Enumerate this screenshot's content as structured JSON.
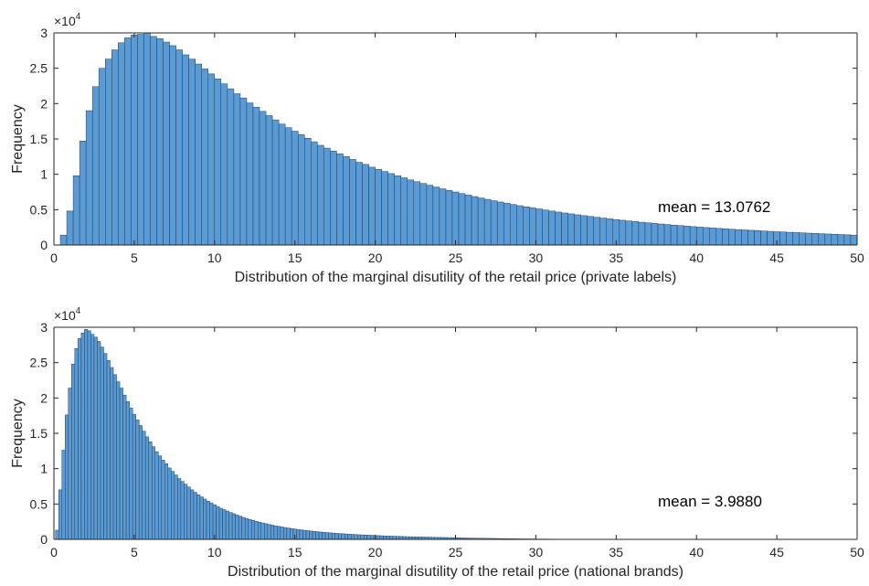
{
  "colors": {
    "bar_fill": "#5b9bd5",
    "bar_edge": "#1f3f5a",
    "axis": "#262626",
    "background": "#ffffff"
  },
  "chart_data": [
    {
      "type": "bar",
      "subtype": "histogram",
      "title": "",
      "xlabel": "Distribution of the marginal disutility of the retail price (private labels)",
      "ylabel": "Frequency",
      "xlim": [
        0,
        50
      ],
      "ylim": [
        0,
        30000
      ],
      "y_exponent_label": {
        "base": "×10",
        "exp": "4"
      },
      "xticks": [
        0,
        5,
        10,
        15,
        20,
        25,
        30,
        35,
        40,
        45,
        50
      ],
      "xtick_labels": [
        "0",
        "5",
        "10",
        "15",
        "20",
        "25",
        "30",
        "35",
        "40",
        "45",
        "50"
      ],
      "yticks": [
        0,
        5000,
        10000,
        15000,
        20000,
        25000,
        30000
      ],
      "ytick_labels": [
        "0",
        "0.5",
        "1",
        "1.5",
        "2",
        "2.5",
        "3"
      ],
      "bin_width": 0.4,
      "x_start": 0.4,
      "values": [
        1400,
        4800,
        9800,
        14700,
        19000,
        22400,
        25000,
        26300,
        27600,
        28600,
        29300,
        29700,
        29800,
        30000,
        29500,
        29200,
        28700,
        28200,
        27600,
        26900,
        26300,
        25600,
        24900,
        24200,
        23500,
        22800,
        22100,
        21400,
        20800,
        20100,
        19500,
        18900,
        18300,
        17700,
        17100,
        16600,
        16100,
        15600,
        15100,
        14600,
        14100,
        13700,
        13300,
        12900,
        12500,
        12100,
        11700,
        11400,
        11000,
        10700,
        10400,
        10100,
        9800,
        9500,
        9200,
        8950,
        8700,
        8450,
        8200,
        7950,
        7720,
        7500,
        7280,
        7060,
        6850,
        6650,
        6450,
        6260,
        6080,
        5900,
        5730,
        5560,
        5400,
        5250,
        5100,
        4950,
        4800,
        4660,
        4530,
        4400,
        4270,
        4150,
        4030,
        3920,
        3810,
        3700,
        3600,
        3500,
        3400,
        3310,
        3220,
        3130,
        3050,
        2970,
        2890,
        2810,
        2740,
        2670,
        2600,
        2530,
        2470,
        2410,
        2350,
        2290,
        2230,
        2180,
        2130,
        2080,
        2030,
        1980,
        1930,
        1880,
        1840,
        1800,
        1760,
        1720,
        1680,
        1640,
        1600,
        1560,
        1520,
        1480,
        1440,
        1400
      ],
      "annotation": "mean = 13.0762"
    },
    {
      "type": "bar",
      "subtype": "histogram",
      "title": "",
      "xlabel": "Distribution of the marginal disutility of the retail price (national brands)",
      "ylabel": "Frequency",
      "xlim": [
        0,
        50
      ],
      "ylim": [
        0,
        30000
      ],
      "y_exponent_label": {
        "base": "×10",
        "exp": "4"
      },
      "xticks": [
        0,
        5,
        10,
        15,
        20,
        25,
        30,
        35,
        40,
        45,
        50
      ],
      "xtick_labels": [
        "0",
        "5",
        "10",
        "15",
        "20",
        "25",
        "30",
        "35",
        "40",
        "45",
        "50"
      ],
      "yticks": [
        0,
        5000,
        10000,
        15000,
        20000,
        25000,
        30000
      ],
      "ytick_labels": [
        "0",
        "0.5",
        "1",
        "1.5",
        "2",
        "2.5",
        "3"
      ],
      "bin_width": 0.2,
      "x_start": 0.1,
      "values": [
        1300,
        7000,
        12600,
        17600,
        21400,
        24800,
        27000,
        28400,
        29200,
        29700,
        29500,
        29000,
        28600,
        28000,
        27200,
        26300,
        25300,
        24300,
        23300,
        22300,
        21400,
        20400,
        19500,
        18600,
        17700,
        16900,
        16100,
        15300,
        14500,
        13800,
        13100,
        12400,
        11800,
        11200,
        10700,
        10100,
        9600,
        9100,
        8600,
        8200,
        7800,
        7400,
        7000,
        6650,
        6300,
        6000,
        5700,
        5400,
        5150,
        4900,
        4650,
        4400,
        4200,
        4000,
        3800,
        3620,
        3440,
        3270,
        3110,
        2960,
        2820,
        2680,
        2550,
        2430,
        2320,
        2210,
        2110,
        2010,
        1920,
        1830,
        1750,
        1670,
        1600,
        1530,
        1460,
        1400,
        1340,
        1280,
        1230,
        1180,
        1130,
        1080,
        1040,
        1000,
        960,
        920,
        880,
        850,
        820,
        790,
        760,
        730,
        700,
        680,
        650,
        630,
        610,
        590,
        570,
        550,
        530,
        510,
        490,
        470,
        455,
        440,
        425,
        410,
        395,
        380,
        370,
        355,
        345,
        335,
        325,
        315,
        305,
        295,
        285,
        275,
        265,
        255,
        245,
        235,
        225,
        215,
        205,
        195,
        185,
        175,
        168,
        161,
        154,
        147,
        140,
        133,
        126,
        119,
        112,
        105,
        98,
        92,
        86,
        80,
        74,
        70,
        66,
        62,
        58,
        54,
        50,
        47,
        44,
        41,
        38,
        35,
        33,
        31,
        29,
        27,
        25,
        23,
        21,
        20,
        19,
        18,
        17,
        16,
        15,
        14,
        13,
        12,
        11,
        10,
        9,
        9,
        8,
        8,
        7,
        7,
        6,
        6,
        5,
        5,
        5,
        4,
        4,
        4,
        3,
        3,
        3,
        3,
        2,
        2,
        2,
        2,
        2,
        1,
        1,
        1,
        1,
        1,
        1,
        1,
        1,
        1,
        1,
        1,
        1,
        1,
        0,
        0,
        0,
        0,
        0,
        0,
        0,
        0,
        0,
        0,
        0,
        0,
        0,
        0,
        0,
        0,
        0,
        0,
        0,
        0,
        0,
        0,
        0,
        0,
        0,
        0,
        0,
        0,
        0,
        0,
        0,
        0,
        0,
        0,
        0,
        0,
        0,
        0,
        0,
        0,
        0,
        0,
        0,
        0,
        0,
        0,
        0,
        0,
        0,
        0
      ],
      "annotation": "mean = 3.9880"
    }
  ]
}
